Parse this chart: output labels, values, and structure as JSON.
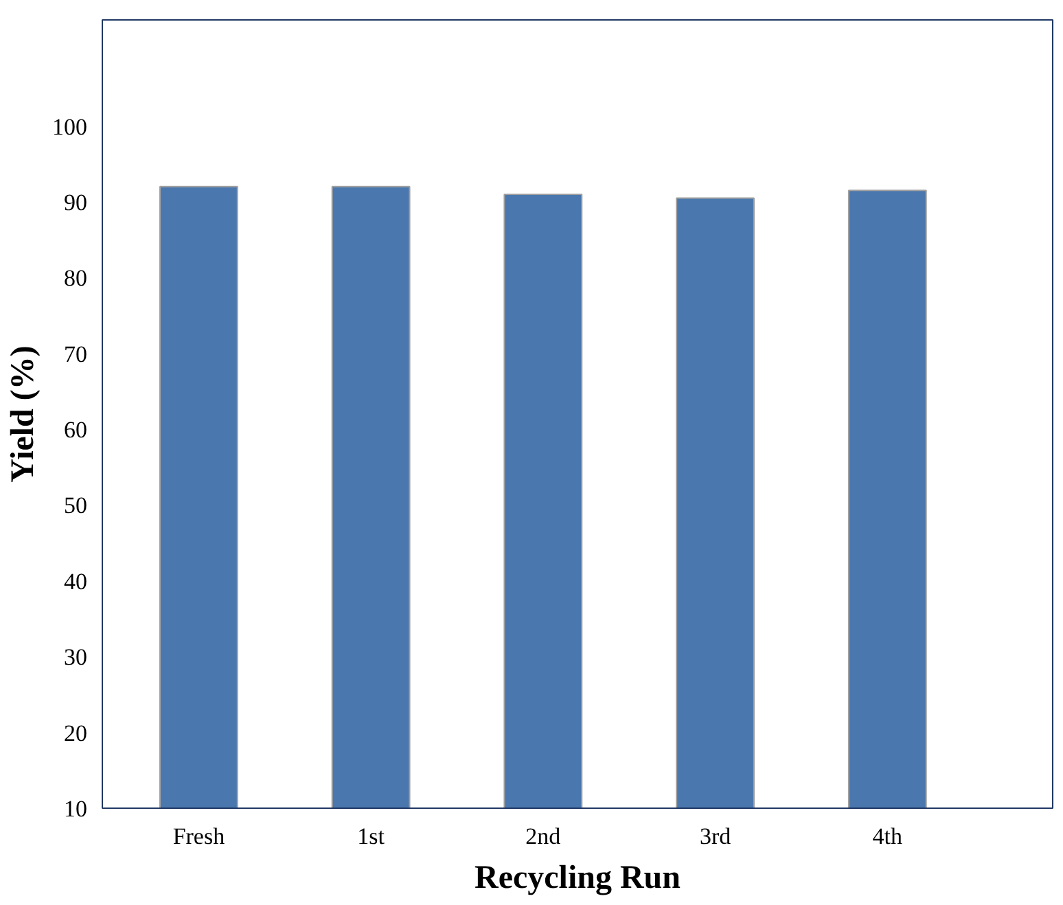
{
  "chart_data": {
    "type": "bar",
    "xlabel": "Recycling Run",
    "ylabel": "Yield (%)",
    "categories": [
      "Fresh",
      "1st",
      "2nd",
      "3rd",
      "4th"
    ],
    "values": [
      92,
      92,
      91,
      90.5,
      91.5
    ],
    "color": "#4a78ae",
    "ylim": [
      10,
      114
    ],
    "yticks": [
      10,
      20,
      30,
      40,
      50,
      60,
      70,
      80,
      90,
      100
    ],
    "grid": false
  }
}
